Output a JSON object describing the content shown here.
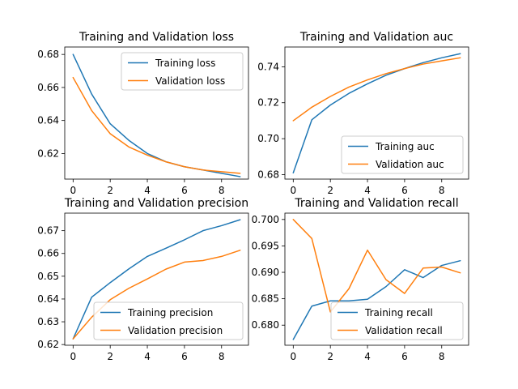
{
  "figure": {
    "background": "#ffffff"
  },
  "colors": {
    "train": "#1f77b4",
    "val": "#ff7f0e",
    "axis": "#000000",
    "legend_border": "#cccccc"
  },
  "chart_data": [
    {
      "type": "line",
      "title": "Training and Validation loss",
      "xlabel": "",
      "ylabel": "",
      "xlim": [
        -0.45,
        9.45
      ],
      "ylim": [
        0.6045,
        0.6845
      ],
      "xticks": [
        0,
        2,
        4,
        6,
        8
      ],
      "xtick_labels": [
        "0",
        "2",
        "4",
        "6",
        "8"
      ],
      "yticks": [
        0.62,
        0.64,
        0.66,
        0.68
      ],
      "ytick_labels": [
        "0.62",
        "0.64",
        "0.66",
        "0.68"
      ],
      "legend_loc": "upper right",
      "x": [
        0,
        1,
        2,
        3,
        4,
        5,
        6,
        7,
        8,
        9
      ],
      "series": [
        {
          "name": "Training loss",
          "color": "#1f77b4",
          "values": [
            0.68,
            0.656,
            0.638,
            0.628,
            0.62,
            0.615,
            0.612,
            0.61,
            0.608,
            0.606
          ]
        },
        {
          "name": "Validation loss",
          "color": "#ff7f0e",
          "values": [
            0.666,
            0.646,
            0.632,
            0.624,
            0.619,
            0.615,
            0.612,
            0.61,
            0.609,
            0.608
          ]
        }
      ]
    },
    {
      "type": "line",
      "title": "Training and Validation auc",
      "xlabel": "",
      "ylabel": "",
      "xlim": [
        -0.45,
        9.45
      ],
      "ylim": [
        0.6775,
        0.751
      ],
      "xticks": [
        0,
        2,
        4,
        6,
        8
      ],
      "xtick_labels": [
        "0",
        "2",
        "4",
        "6",
        "8"
      ],
      "yticks": [
        0.68,
        0.7,
        0.72,
        0.74
      ],
      "ytick_labels": [
        "0.68",
        "0.70",
        "0.72",
        "0.74"
      ],
      "legend_loc": "lower right",
      "x": [
        0,
        1,
        2,
        3,
        4,
        5,
        6,
        7,
        8,
        9
      ],
      "series": [
        {
          "name": "Training auc",
          "color": "#1f77b4",
          "values": [
            0.681,
            0.7105,
            0.7187,
            0.7252,
            0.7305,
            0.7353,
            0.739,
            0.7423,
            0.745,
            0.7473
          ]
        },
        {
          "name": "Validation auc",
          "color": "#ff7f0e",
          "values": [
            0.71,
            0.7175,
            0.7235,
            0.7287,
            0.7327,
            0.7362,
            0.739,
            0.7415,
            0.7433,
            0.745
          ]
        }
      ]
    },
    {
      "type": "line",
      "title": "Training and Validation precision",
      "xlabel": "",
      "ylabel": "",
      "xlim": [
        -0.45,
        9.45
      ],
      "ylim": [
        0.6197,
        0.6777
      ],
      "xticks": [
        0,
        2,
        4,
        6,
        8
      ],
      "xtick_labels": [
        "0",
        "2",
        "4",
        "6",
        "8"
      ],
      "yticks": [
        0.62,
        0.63,
        0.64,
        0.65,
        0.66,
        0.67
      ],
      "ytick_labels": [
        "0.62",
        "0.63",
        "0.64",
        "0.65",
        "0.66",
        "0.67"
      ],
      "legend_loc": "lower right",
      "x": [
        0,
        1,
        2,
        3,
        4,
        5,
        6,
        7,
        8,
        9
      ],
      "series": [
        {
          "name": "Training precision",
          "color": "#1f77b4",
          "values": [
            0.6225,
            0.6408,
            0.6472,
            0.6532,
            0.6587,
            0.6623,
            0.666,
            0.67,
            0.6722,
            0.6748
          ]
        },
        {
          "name": "Validation precision",
          "color": "#ff7f0e",
          "values": [
            0.6225,
            0.632,
            0.6397,
            0.6447,
            0.6488,
            0.6531,
            0.6562,
            0.6569,
            0.6587,
            0.6614
          ]
        }
      ]
    },
    {
      "type": "line",
      "title": "Training and Validation recall",
      "xlabel": "",
      "ylabel": "",
      "xlim": [
        -0.45,
        9.45
      ],
      "ylim": [
        0.6762,
        0.7012
      ],
      "xticks": [
        0,
        2,
        4,
        6,
        8
      ],
      "xtick_labels": [
        "0",
        "2",
        "4",
        "6",
        "8"
      ],
      "yticks": [
        0.68,
        0.685,
        0.69,
        0.695,
        0.7
      ],
      "ytick_labels": [
        "0.680",
        "0.685",
        "0.690",
        "0.695",
        "0.700"
      ],
      "legend_loc": "lower right",
      "x": [
        0,
        1,
        2,
        3,
        4,
        5,
        6,
        7,
        8,
        9
      ],
      "series": [
        {
          "name": "Training recall",
          "color": "#1f77b4",
          "values": [
            0.6773,
            0.6836,
            0.6846,
            0.6846,
            0.6849,
            0.6873,
            0.6905,
            0.689,
            0.6913,
            0.6922
          ]
        },
        {
          "name": "Validation recall",
          "color": "#ff7f0e",
          "values": [
            0.7,
            0.6964,
            0.6825,
            0.6869,
            0.6942,
            0.6886,
            0.686,
            0.6908,
            0.691,
            0.6899
          ]
        }
      ]
    }
  ]
}
